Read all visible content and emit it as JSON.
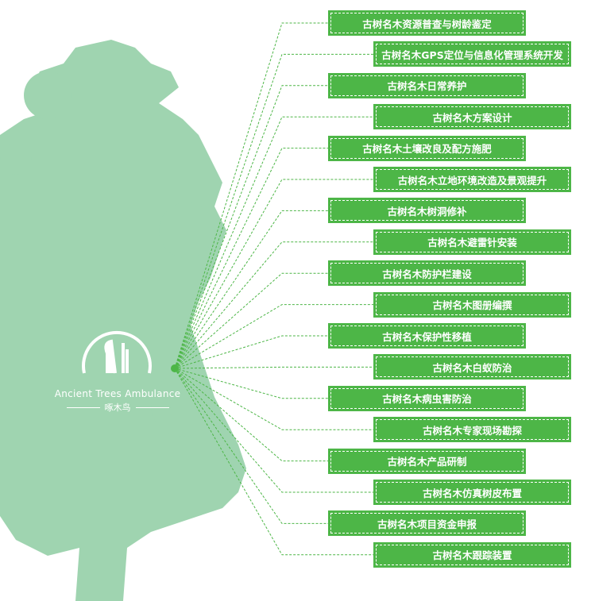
{
  "logo": {
    "english": "Ancient Trees Ambulance",
    "chinese": "啄木鸟"
  },
  "colors": {
    "tree": "#9fd4b0",
    "box": "#4db647",
    "line": "#4db647"
  },
  "services": [
    "古树名木资源普查与树龄鉴定",
    "古树名木GPS定位与信息化管理系统开发",
    "古树名木日常养护",
    "古树名木方案设计",
    "古树名木土壤改良及配方施肥",
    "古树名木立地环境改造及景观提升",
    "古树名木树洞修补",
    "古树名木避雷针安装",
    "古树名木防护栏建设",
    "古树名木图册编撰",
    "古树名木保护性移植",
    "古树名木白蚁防治",
    "古树名木病虫害防治",
    "古树名木专家现场勘探",
    "古树名木产品研制",
    "古树名木仿真树皮布置",
    "古树名木项目资金申报",
    "古树名木跟踪装置"
  ]
}
